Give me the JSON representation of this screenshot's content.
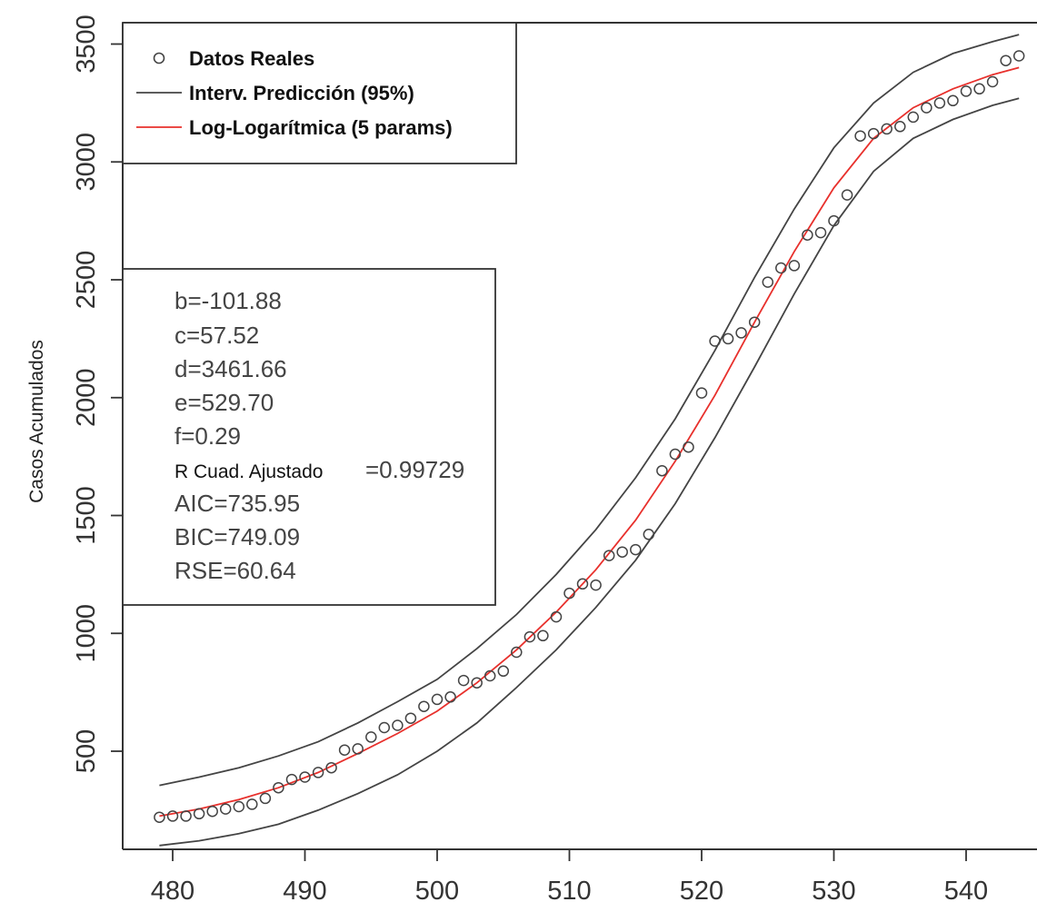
{
  "chart_data": {
    "type": "scatter",
    "title": "",
    "xlabel": "",
    "ylabel": "Casos Acumulados",
    "xlim": [
      478,
      545
    ],
    "ylim": [
      75,
      3560
    ],
    "x_ticks": [
      "480",
      "490",
      "500",
      "510",
      "520",
      "530",
      "540"
    ],
    "y_ticks": [
      "500",
      "1000",
      "1500",
      "2000",
      "2500",
      "3000",
      "3500"
    ],
    "grid": false,
    "legend_position": "top-left",
    "legend": [
      {
        "label": "Datos Reales",
        "marker": "open-circle",
        "color": "#444444"
      },
      {
        "label": "Interv. Predicción (95%)",
        "marker": "line",
        "color": "#444444"
      },
      {
        "label": "Log-Logarítmica (5 params)",
        "marker": "line",
        "color": "#e8302c"
      }
    ],
    "series": [
      {
        "name": "Datos Reales",
        "kind": "points",
        "color": "#444444",
        "x": [
          479,
          480,
          481,
          482,
          483,
          484,
          485,
          486,
          487,
          488,
          489,
          490,
          491,
          492,
          493,
          494,
          495,
          496,
          497,
          498,
          499,
          500,
          501,
          502,
          503,
          504,
          505,
          506,
          507,
          508,
          509,
          510,
          511,
          512,
          513,
          514,
          515,
          516,
          517,
          518,
          519,
          520,
          521,
          522,
          523,
          524,
          525,
          526,
          527,
          528,
          529,
          530,
          531,
          532,
          533,
          534,
          535,
          536,
          537,
          538,
          539,
          540,
          541,
          542,
          543,
          544
        ],
        "y": [
          220,
          225,
          225,
          235,
          245,
          255,
          265,
          275,
          300,
          345,
          380,
          390,
          410,
          430,
          505,
          510,
          560,
          600,
          610,
          640,
          690,
          720,
          730,
          800,
          790,
          820,
          840,
          920,
          985,
          990,
          1070,
          1170,
          1210,
          1205,
          1330,
          1345,
          1355,
          1420,
          1690,
          1760,
          1790,
          2020,
          2240,
          2250,
          2275,
          2320,
          2490,
          2550,
          2560,
          2690,
          2700,
          2750,
          2860,
          3110,
          3120,
          3140,
          3150,
          3190,
          3230,
          3250,
          3260,
          3300,
          3310,
          3340,
          3430,
          3450
        ]
      },
      {
        "name": "Log-Logarítmica (5 params)",
        "kind": "line",
        "color": "#e8302c",
        "x": [
          479,
          482,
          485,
          488,
          491,
          494,
          497,
          500,
          503,
          506,
          509,
          512,
          515,
          518,
          521,
          524,
          527,
          530,
          533,
          536,
          539,
          542,
          544
        ],
        "y": [
          225,
          255,
          295,
          345,
          410,
          490,
          575,
          670,
          790,
          930,
          1090,
          1270,
          1480,
          1730,
          2010,
          2320,
          2620,
          2890,
          3100,
          3230,
          3310,
          3370,
          3400
        ]
      },
      {
        "name": "Interv. Predicción (95%) - superior",
        "kind": "line",
        "color": "#444444",
        "x": [
          479,
          482,
          485,
          488,
          491,
          494,
          497,
          500,
          503,
          506,
          509,
          512,
          515,
          518,
          521,
          524,
          527,
          530,
          533,
          536,
          539,
          542,
          544
        ],
        "y": [
          355,
          390,
          430,
          480,
          540,
          620,
          710,
          805,
          935,
          1080,
          1250,
          1440,
          1660,
          1910,
          2200,
          2510,
          2800,
          3060,
          3250,
          3380,
          3460,
          3510,
          3540
        ]
      },
      {
        "name": "Interv. Predicción (95%) - inferior",
        "kind": "line",
        "color": "#444444",
        "x": [
          479,
          482,
          485,
          488,
          491,
          494,
          497,
          500,
          503,
          506,
          509,
          512,
          515,
          518,
          521,
          524,
          527,
          530,
          533,
          536,
          539,
          542,
          544
        ],
        "y": [
          100,
          120,
          150,
          190,
          250,
          320,
          400,
          500,
          620,
          770,
          930,
          1110,
          1310,
          1550,
          1830,
          2130,
          2440,
          2730,
          2960,
          3100,
          3180,
          3240,
          3270
        ]
      }
    ],
    "stats_box": [
      {
        "text": "b=-101.88",
        "style": "normal"
      },
      {
        "text": "c=57.52",
        "style": "normal"
      },
      {
        "text": "d=3461.66",
        "style": "normal"
      },
      {
        "text": "e=529.70",
        "style": "normal"
      },
      {
        "text": "f=0.29",
        "style": "normal"
      },
      {
        "label": "R Cuad. Ajustado",
        "text": "=0.99729",
        "style": "mixed"
      },
      {
        "text": "AIC=735.95",
        "style": "normal"
      },
      {
        "text": "BIC=749.09",
        "style": "normal"
      },
      {
        "text": "RSE=60.64",
        "style": "normal"
      }
    ]
  }
}
